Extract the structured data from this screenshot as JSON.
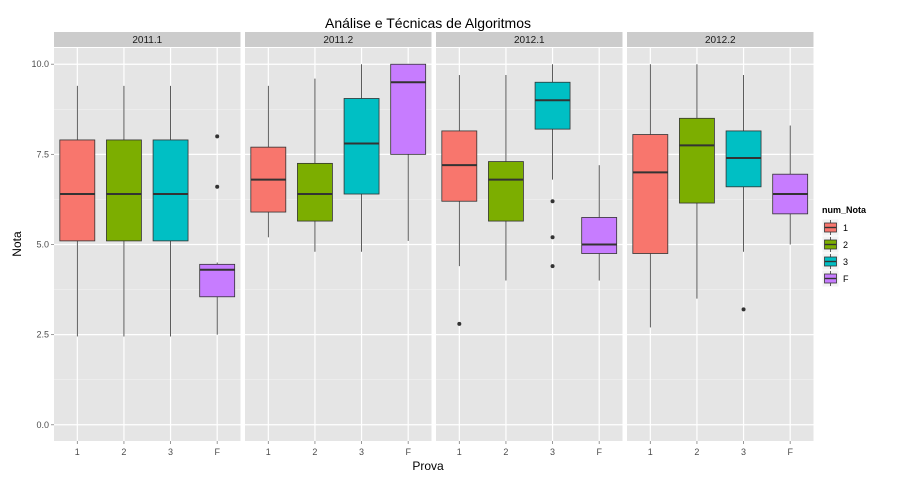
{
  "chart_data": {
    "type": "boxplot",
    "title": "Análise e Técnicas de Algoritmos",
    "xlabel": "Prova",
    "ylabel": "Nota",
    "ylim": [
      -0.45,
      10.45
    ],
    "yticks": [
      0,
      2.5,
      5,
      7.5,
      10
    ],
    "ytick_labels": [
      "0.0",
      "2.5",
      "5.0",
      "7.5",
      "10.0"
    ],
    "categories": [
      "1",
      "2",
      "3",
      "F"
    ],
    "legend": {
      "title": "num_Nota",
      "position": "right",
      "entries": [
        {
          "label": "1",
          "color": "#F8766D"
        },
        {
          "label": "2",
          "color": "#7CAE00"
        },
        {
          "label": "3",
          "color": "#00BFC4"
        },
        {
          "label": "F",
          "color": "#C77CFF"
        }
      ]
    },
    "facets": [
      {
        "label": "2011.1",
        "boxes": [
          {
            "x": "1",
            "min": 2.45,
            "q1": 5.1,
            "median": 6.4,
            "q3": 7.9,
            "max": 9.4,
            "outliers": []
          },
          {
            "x": "2",
            "min": 2.45,
            "q1": 5.1,
            "median": 6.4,
            "q3": 7.9,
            "max": 9.4,
            "outliers": []
          },
          {
            "x": "3",
            "min": 2.45,
            "q1": 5.1,
            "median": 6.4,
            "q3": 7.9,
            "max": 9.4,
            "outliers": []
          },
          {
            "x": "F",
            "min": 2.5,
            "q1": 3.55,
            "median": 4.3,
            "q3": 4.45,
            "max": 4.5,
            "outliers": [
              8.0,
              6.6
            ]
          }
        ]
      },
      {
        "label": "2011.2",
        "boxes": [
          {
            "x": "1",
            "min": 5.2,
            "q1": 5.9,
            "median": 6.8,
            "q3": 7.7,
            "max": 9.4,
            "outliers": []
          },
          {
            "x": "2",
            "min": 4.8,
            "q1": 5.65,
            "median": 6.4,
            "q3": 7.25,
            "max": 9.6,
            "outliers": []
          },
          {
            "x": "3",
            "min": 4.8,
            "q1": 6.4,
            "median": 7.8,
            "q3": 9.05,
            "max": 10.0,
            "outliers": []
          },
          {
            "x": "F",
            "min": 5.1,
            "q1": 7.5,
            "median": 9.5,
            "q3": 10.0,
            "max": 10.0,
            "outliers": []
          }
        ]
      },
      {
        "label": "2012.1",
        "boxes": [
          {
            "x": "1",
            "min": 4.4,
            "q1": 6.2,
            "median": 7.2,
            "q3": 8.15,
            "max": 9.7,
            "outliers": [
              2.8
            ]
          },
          {
            "x": "2",
            "min": 4.0,
            "q1": 5.65,
            "median": 6.8,
            "q3": 7.3,
            "max": 9.7,
            "outliers": []
          },
          {
            "x": "3",
            "min": 6.8,
            "q1": 8.2,
            "median": 9.0,
            "q3": 9.5,
            "max": 10.0,
            "outliers": [
              6.2,
              5.2,
              4.4
            ]
          },
          {
            "x": "F",
            "min": 4.0,
            "q1": 4.75,
            "median": 5.0,
            "q3": 5.75,
            "max": 7.2,
            "outliers": []
          }
        ]
      },
      {
        "label": "2012.2",
        "boxes": [
          {
            "x": "1",
            "min": 2.7,
            "q1": 4.75,
            "median": 7.0,
            "q3": 8.05,
            "max": 10.0,
            "outliers": []
          },
          {
            "x": "2",
            "min": 3.5,
            "q1": 6.15,
            "median": 7.75,
            "q3": 8.5,
            "max": 10.0,
            "outliers": []
          },
          {
            "x": "3",
            "min": 4.8,
            "q1": 6.6,
            "median": 7.4,
            "q3": 8.15,
            "max": 9.7,
            "outliers": [
              3.2
            ]
          },
          {
            "x": "F",
            "min": 5.0,
            "q1": 5.85,
            "median": 6.4,
            "q3": 6.95,
            "max": 8.3,
            "outliers": []
          }
        ]
      }
    ]
  }
}
